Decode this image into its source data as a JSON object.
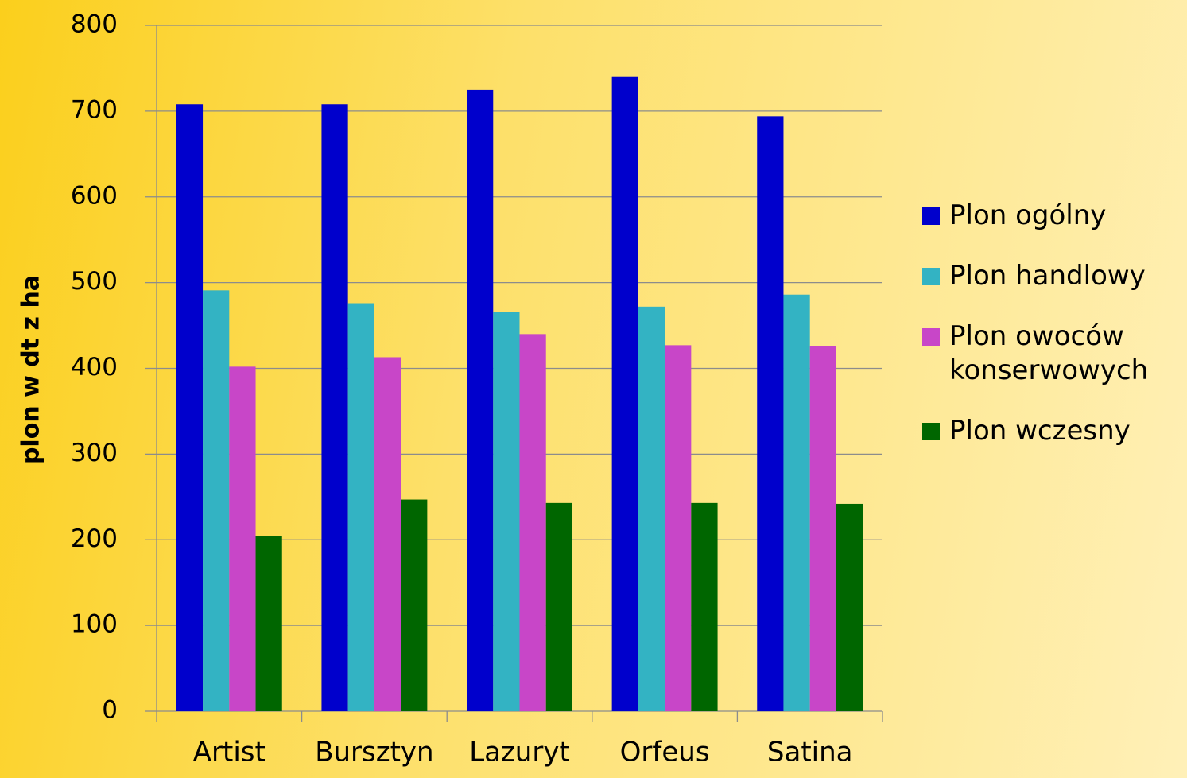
{
  "chart_data": {
    "type": "bar",
    "ylabel": "plon w dt z ha",
    "categories": [
      "Artist",
      "Bursztyn",
      "Lazuryt",
      "Orfeus",
      "Satina"
    ],
    "series": [
      {
        "name": "Plon ogólny",
        "color": "#0000cc",
        "values": [
          708,
          708,
          725,
          740,
          694
        ]
      },
      {
        "name": "Plon handlowy",
        "color": "#33b3c3",
        "values": [
          491,
          476,
          466,
          472,
          486
        ]
      },
      {
        "name": "Plon owoców konserwowych",
        "color": "#c846c8",
        "values": [
          402,
          413,
          440,
          427,
          426
        ]
      },
      {
        "name": "Plon wczesny",
        "color": "#006600",
        "values": [
          204,
          247,
          243,
          243,
          242
        ]
      }
    ],
    "ylim": [
      0,
      800
    ],
    "yticks": [
      0,
      100,
      200,
      300,
      400,
      500,
      600,
      700,
      800
    ],
    "grid": true,
    "legend": "right"
  }
}
